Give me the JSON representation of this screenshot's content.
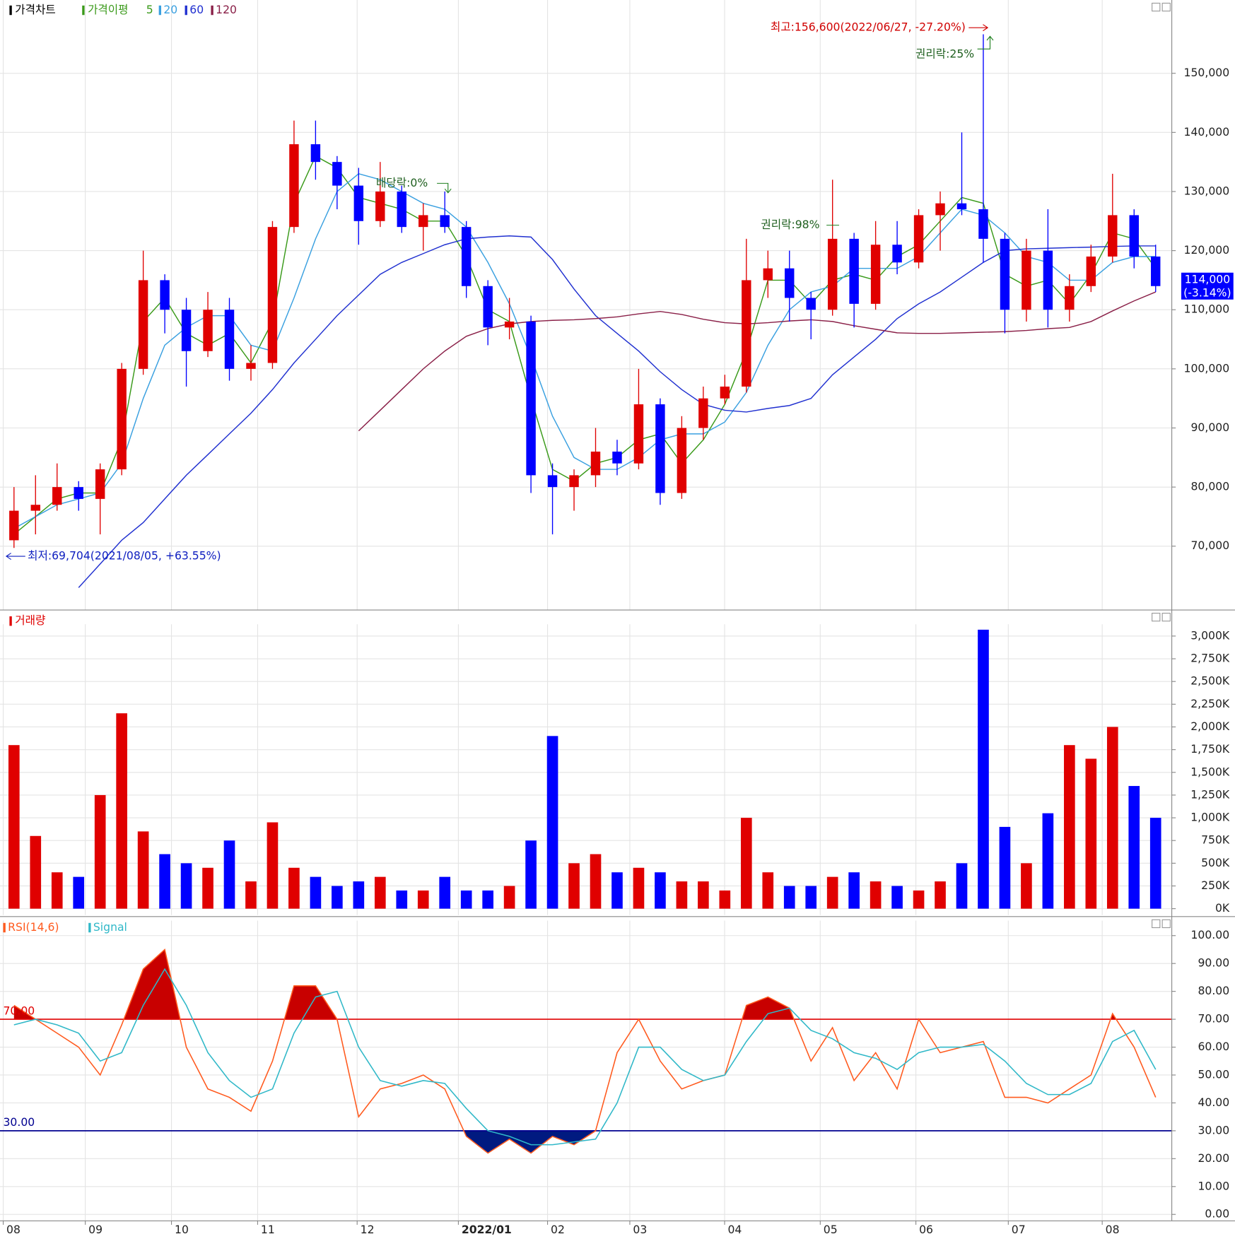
{
  "chart_data": [
    {
      "type": "candlestick",
      "title": "가격차트",
      "ma_title": "가격이평",
      "open": [
        71000,
        76000,
        77000,
        80000,
        78000,
        83000,
        100000,
        115000,
        110000,
        103000,
        110000,
        100000,
        101000,
        124000,
        138000,
        135000,
        131000,
        125000,
        130000,
        124000,
        126000,
        124000,
        114000,
        107000,
        108000,
        82000,
        80000,
        82000,
        86000,
        84000,
        94000,
        79000,
        90000,
        95000,
        97000,
        115000,
        117000,
        112000,
        110000,
        122000,
        111000,
        121000,
        118000,
        126000,
        128000,
        127000,
        122000,
        110000,
        120000,
        110000,
        114000,
        119000,
        126000,
        119000
      ],
      "high": [
        80000,
        82000,
        84000,
        81000,
        84000,
        101000,
        120000,
        116000,
        112000,
        113000,
        112000,
        104000,
        125000,
        142000,
        142000,
        136000,
        134000,
        135000,
        131000,
        128000,
        130000,
        125000,
        115000,
        112000,
        109000,
        84000,
        83000,
        90000,
        88000,
        100000,
        95000,
        92000,
        97000,
        99000,
        122000,
        120000,
        120000,
        113000,
        132000,
        123000,
        125000,
        125000,
        127000,
        130000,
        140000,
        156600,
        123000,
        122000,
        127000,
        116000,
        121000,
        133000,
        127000,
        121000
      ],
      "low": [
        69704,
        72000,
        76000,
        76000,
        72000,
        82000,
        99000,
        106000,
        97000,
        102000,
        98000,
        98000,
        100000,
        123000,
        132000,
        127000,
        121000,
        124000,
        123000,
        120000,
        123000,
        112000,
        104000,
        105000,
        79000,
        72000,
        76000,
        80000,
        82000,
        83000,
        77000,
        78000,
        88000,
        94000,
        96000,
        112000,
        108000,
        105000,
        109000,
        107000,
        110000,
        116000,
        117000,
        120000,
        126000,
        118000,
        106000,
        108000,
        107000,
        108000,
        113000,
        118000,
        117000,
        113000
      ],
      "close": [
        76000,
        77000,
        80000,
        78000,
        83000,
        100000,
        115000,
        110000,
        103000,
        110000,
        100000,
        101000,
        124000,
        138000,
        135000,
        131000,
        125000,
        130000,
        124000,
        126000,
        124000,
        114000,
        107000,
        108000,
        82000,
        80000,
        82000,
        86000,
        84000,
        94000,
        79000,
        90000,
        95000,
        97000,
        115000,
        117000,
        112000,
        110000,
        122000,
        111000,
        121000,
        118000,
        126000,
        128000,
        127000,
        122000,
        110000,
        120000,
        110000,
        114000,
        119000,
        126000,
        119000,
        114000
      ],
      "up_color": "#e00000",
      "down_color": "#0000ff",
      "series": [
        {
          "name": "5",
          "color": "#3a9a1a",
          "values": [
            72000,
            75000,
            78000,
            79000,
            79000,
            88000,
            108000,
            112000,
            106000,
            104000,
            106000,
            101000,
            108000,
            128000,
            136000,
            134000,
            129000,
            128000,
            127000,
            125000,
            125000,
            119000,
            110000,
            108000,
            95000,
            83000,
            81000,
            84000,
            85000,
            88000,
            89000,
            84000,
            88000,
            94000,
            103000,
            115000,
            115000,
            111000,
            115000,
            116000,
            115000,
            119000,
            121000,
            125000,
            129000,
            128000,
            116000,
            114000,
            115000,
            111000,
            116000,
            123000,
            122000,
            117000
          ]
        },
        {
          "name": "20",
          "color": "#3aa0e0",
          "values": [
            73000,
            75000,
            77000,
            78000,
            79000,
            84000,
            95000,
            104000,
            107000,
            109000,
            109000,
            104000,
            103000,
            112000,
            122000,
            130000,
            133000,
            132000,
            130000,
            128000,
            127000,
            124000,
            118000,
            111000,
            102000,
            92000,
            85000,
            83000,
            83000,
            85000,
            88000,
            89000,
            89000,
            91000,
            96000,
            104000,
            110000,
            113000,
            114000,
            117000,
            117000,
            117000,
            119000,
            123000,
            127000,
            126000,
            123000,
            119000,
            118000,
            115000,
            115000,
            118000,
            119000,
            119000
          ]
        },
        {
          "name": "60",
          "color": "#2030d0",
          "values": [
            null,
            null,
            null,
            63000,
            67000,
            71000,
            74000,
            78000,
            82000,
            85500,
            89000,
            92500,
            96500,
            101000,
            105000,
            109000,
            112500,
            116000,
            118000,
            119500,
            121000,
            122000,
            122300,
            122500,
            122300,
            118500,
            113500,
            109000,
            106000,
            103000,
            99500,
            96500,
            94000,
            93000,
            92700,
            93300,
            93800,
            95000,
            99000,
            102000,
            105000,
            108500,
            111000,
            113000,
            115500,
            118000,
            120000,
            120300,
            120400,
            120500,
            120600,
            120700,
            120800,
            120800
          ]
        },
        {
          "name": "120",
          "color": "#8a2048",
          "values": [
            null,
            null,
            null,
            null,
            null,
            null,
            null,
            null,
            null,
            null,
            null,
            null,
            null,
            null,
            null,
            null,
            89500,
            93000,
            96500,
            100000,
            103000,
            105500,
            106800,
            107600,
            108000,
            108200,
            108300,
            108500,
            108800,
            109300,
            109700,
            109200,
            108400,
            107800,
            107600,
            107800,
            108100,
            108300,
            108000,
            107300,
            106700,
            106100,
            106000,
            106000,
            106100,
            106200,
            106300,
            106500,
            106800,
            107000,
            108000,
            109800,
            111500,
            113000
          ]
        }
      ],
      "xlim": [
        -0.15,
        54.25
      ],
      "ylim": [
        59200,
        162400
      ],
      "yticks": [
        {
          "value": 70000,
          "label": "70,000"
        },
        {
          "value": 80000,
          "label": "80,000"
        },
        {
          "value": 90000,
          "label": "90,000"
        },
        {
          "value": 100000,
          "label": "100,000"
        },
        {
          "value": 110000,
          "label": "110,000"
        },
        {
          "value": 120000,
          "label": "120,000"
        },
        {
          "value": 130000,
          "label": "130,000"
        },
        {
          "value": 140000,
          "label": "140,000"
        },
        {
          "value": 150000,
          "label": "150,000"
        }
      ],
      "grid": true,
      "last_price": {
        "value": 114000,
        "label": "114,000",
        "change": "(-3.14%)"
      },
      "annotations": [
        "최고:156,600(2022/06/27, -27.20%)",
        "권리락:25%",
        "배당락:0%",
        "권리락:98%",
        "최저:69,704(2021/08/05, +63.55%)"
      ]
    },
    {
      "type": "bar",
      "title": "거래량",
      "values": [
        1800,
        800,
        400,
        350,
        1250,
        2150,
        850,
        600,
        500,
        450,
        750,
        300,
        950,
        450,
        350,
        250,
        300,
        350,
        200,
        200,
        350,
        200,
        200,
        250,
        750,
        1900,
        500,
        600,
        400,
        450,
        400,
        300,
        300,
        200,
        1000,
        400,
        250,
        250,
        350,
        400,
        300,
        250,
        200,
        300,
        500,
        3070,
        900,
        500,
        1050,
        1800,
        1650,
        2000,
        1350,
        1000
      ],
      "xlim": [
        -0.15,
        54.25
      ],
      "ylim": [
        -70,
        3130
      ],
      "yticks": [
        {
          "value": 0,
          "label": "0K"
        },
        {
          "value": 250,
          "label": "250K"
        },
        {
          "value": 500,
          "label": "500K"
        },
        {
          "value": 750,
          "label": "750K"
        },
        {
          "value": 1000,
          "label": "1,000K"
        },
        {
          "value": 1250,
          "label": "1,250K"
        },
        {
          "value": 1500,
          "label": "1,500K"
        },
        {
          "value": 1750,
          "label": "1,750K"
        },
        {
          "value": 2000,
          "label": "2,000K"
        },
        {
          "value": 2250,
          "label": "2,250K"
        },
        {
          "value": 2500,
          "label": "2,500K"
        },
        {
          "value": 2750,
          "label": "2,750K"
        },
        {
          "value": 3000,
          "label": "3,000K"
        }
      ],
      "grid": true
    },
    {
      "type": "line",
      "series": [
        {
          "name": "RSI(14,6)",
          "color": "#ff5a1e",
          "values": [
            75,
            70,
            65,
            60,
            50,
            68,
            88,
            95,
            60,
            45,
            42,
            37,
            55,
            82,
            82,
            70,
            35,
            45,
            47,
            50,
            45,
            28,
            22,
            27,
            22,
            28,
            25,
            30,
            58,
            70,
            55,
            45,
            48,
            50,
            75,
            78,
            74,
            55,
            67,
            48,
            58,
            45,
            70,
            58,
            60,
            62,
            42,
            42,
            40,
            45,
            50,
            72,
            60,
            42
          ]
        },
        {
          "name": "Signal",
          "color": "#30b8c8",
          "values": [
            68,
            70,
            68,
            65,
            55,
            58,
            75,
            88,
            75,
            58,
            48,
            42,
            45,
            65,
            78,
            80,
            60,
            48,
            46,
            48,
            47,
            38,
            30,
            28,
            25,
            25,
            26,
            27,
            40,
            60,
            60,
            52,
            48,
            50,
            62,
            72,
            74,
            66,
            63,
            58,
            56,
            52,
            58,
            60,
            60,
            61,
            55,
            47,
            43,
            43,
            47,
            62,
            66,
            52
          ]
        }
      ],
      "hlines": [
        {
          "value": 70,
          "label": "70.00",
          "color": "#e00000",
          "fill": "#c80000"
        },
        {
          "value": 30,
          "label": "30.00",
          "color": "#000090",
          "fill": "#001a80"
        }
      ],
      "xlim": [
        -0.15,
        54.25
      ],
      "ylim": [
        -2.3,
        105.4
      ],
      "yticks": [
        {
          "value": 0,
          "label": "0.00"
        },
        {
          "value": 10,
          "label": "10.00"
        },
        {
          "value": 20,
          "label": "20.00"
        },
        {
          "value": 30,
          "label": "30.00"
        },
        {
          "value": 40,
          "label": "40.00"
        },
        {
          "value": 50,
          "label": "50.00"
        },
        {
          "value": 60,
          "label": "60.00"
        },
        {
          "value": 70,
          "label": "70.00"
        },
        {
          "value": 80,
          "label": "80.00"
        },
        {
          "value": 90,
          "label": "90.00"
        },
        {
          "value": 100,
          "label": "100.00"
        }
      ],
      "xticks": [
        {
          "value": 0,
          "label": "08"
        },
        {
          "value": 3.81,
          "label": "09"
        },
        {
          "value": 7.81,
          "label": "10"
        },
        {
          "value": 11.81,
          "label": "11"
        },
        {
          "value": 16.43,
          "label": "12"
        },
        {
          "value": 21.13,
          "label": "2022/01"
        },
        {
          "value": 25.27,
          "label": "02"
        },
        {
          "value": 29.09,
          "label": "03"
        },
        {
          "value": 33.49,
          "label": "04"
        },
        {
          "value": 37.93,
          "label": "05"
        },
        {
          "value": 42.37,
          "label": "06"
        },
        {
          "value": 46.66,
          "label": "07"
        },
        {
          "value": 51.02,
          "label": "08"
        }
      ],
      "grid": true
    }
  ]
}
